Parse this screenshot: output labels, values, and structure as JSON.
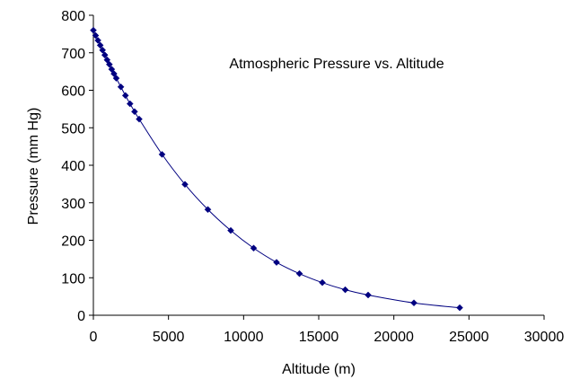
{
  "chart_data": {
    "type": "scatter",
    "title": "Atmospheric Pressure vs. Altitude",
    "xlabel": "Altitude (m)",
    "ylabel": "Pressure (mm Hg)",
    "xlim": [
      0,
      30000
    ],
    "ylim": [
      0,
      800
    ],
    "x_ticks": [
      0,
      5000,
      10000,
      15000,
      20000,
      25000,
      30000
    ],
    "y_ticks": [
      0,
      100,
      200,
      300,
      400,
      500,
      600,
      700,
      800
    ],
    "grid": false,
    "legend": "none",
    "series": [
      {
        "color": "#000080",
        "marker": "diamond",
        "smoothed_line": true,
        "points": [
          {
            "x": 0,
            "y": 760
          },
          {
            "x": 152,
            "y": 746
          },
          {
            "x": 305,
            "y": 733
          },
          {
            "x": 457,
            "y": 720
          },
          {
            "x": 610,
            "y": 707
          },
          {
            "x": 762,
            "y": 694
          },
          {
            "x": 914,
            "y": 681
          },
          {
            "x": 1067,
            "y": 669
          },
          {
            "x": 1219,
            "y": 656
          },
          {
            "x": 1372,
            "y": 644
          },
          {
            "x": 1524,
            "y": 632
          },
          {
            "x": 1829,
            "y": 609
          },
          {
            "x": 2134,
            "y": 586
          },
          {
            "x": 2438,
            "y": 564
          },
          {
            "x": 2743,
            "y": 543
          },
          {
            "x": 3048,
            "y": 523
          },
          {
            "x": 4572,
            "y": 429
          },
          {
            "x": 6096,
            "y": 349
          },
          {
            "x": 7620,
            "y": 282
          },
          {
            "x": 9144,
            "y": 226
          },
          {
            "x": 10668,
            "y": 179
          },
          {
            "x": 12192,
            "y": 141
          },
          {
            "x": 13716,
            "y": 111
          },
          {
            "x": 15240,
            "y": 87
          },
          {
            "x": 16764,
            "y": 68
          },
          {
            "x": 18288,
            "y": 54
          },
          {
            "x": 21336,
            "y": 33
          },
          {
            "x": 24384,
            "y": 20
          }
        ]
      }
    ]
  }
}
